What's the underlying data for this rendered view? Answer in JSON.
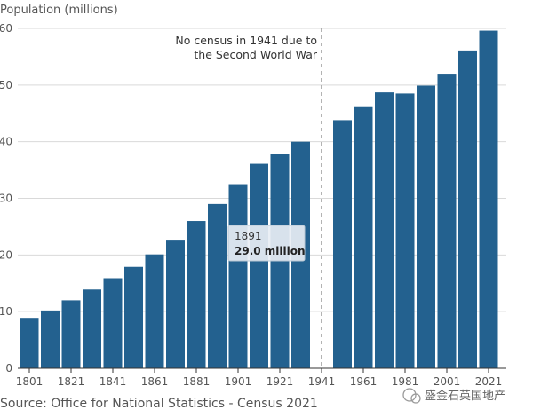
{
  "chart_data": {
    "type": "bar",
    "ylabel": "Population (millions)",
    "ylim": [
      0,
      60
    ],
    "yticks": [
      0,
      10,
      20,
      30,
      40,
      50,
      60
    ],
    "grid": true,
    "bar_color": "#23618f",
    "x": [
      1801,
      1811,
      1821,
      1831,
      1841,
      1851,
      1861,
      1871,
      1881,
      1891,
      1901,
      1911,
      1921,
      1931,
      1951,
      1961,
      1971,
      1981,
      1991,
      2001,
      2011,
      2021
    ],
    "values": [
      8.9,
      10.2,
      12.0,
      13.9,
      15.9,
      17.9,
      20.1,
      22.7,
      26.0,
      29.0,
      32.5,
      36.1,
      37.9,
      40.0,
      43.8,
      46.1,
      48.7,
      48.5,
      49.9,
      52.0,
      56.1,
      59.6
    ],
    "xticks": [
      1801,
      1821,
      1841,
      1861,
      1881,
      1901,
      1921,
      1941,
      1961,
      1981,
      2001,
      2021
    ],
    "gap_year": 1941,
    "annotation": [
      "No census in 1941 due to",
      "the Second World War"
    ],
    "tooltip": {
      "year": "1891",
      "value": "29.0 million"
    },
    "source": "Source: Office for National Statistics - Census 2021"
  },
  "watermark": "盛金石英国地产"
}
